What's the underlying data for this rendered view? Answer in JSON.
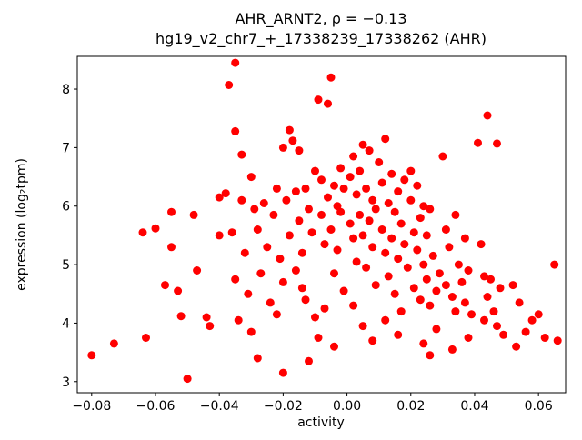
{
  "figure": {
    "title_line1": "AHR_ARNT2, ρ = −0.13",
    "title_line2": "hg19_v2_chr7_+_17338239_17338262 (AHR)",
    "xlabel": "activity",
    "ylabel": "expression (log₂tpm)"
  },
  "chart_data": {
    "type": "scatter",
    "title": "AHR_ARNT2, ρ = −0.13",
    "subtitle": "hg19_v2_chr7_+_17338239_17338262 (AHR)",
    "correlation_rho": -0.13,
    "xlabel": "activity",
    "ylabel": "expression (log₂tpm)",
    "marker_color": "#ff0000",
    "grid": false,
    "legend_position": "none",
    "xlim": [
      -0.0845,
      0.0685
    ],
    "ylim": [
      2.81,
      8.56
    ],
    "x_ticks": {
      "values": [
        -0.08,
        -0.06,
        -0.04,
        -0.02,
        0.0,
        0.02,
        0.04,
        0.06
      ],
      "labels": [
        "−0.08",
        "−0.06",
        "−0.04",
        "−0.02",
        "0.00",
        "0.02",
        "0.04",
        "0.06"
      ]
    },
    "y_ticks": {
      "values": [
        3,
        4,
        5,
        6,
        7,
        8
      ],
      "labels": [
        "3",
        "4",
        "5",
        "6",
        "7",
        "8"
      ]
    },
    "points": [
      [
        -0.08,
        3.45
      ],
      [
        -0.073,
        3.65
      ],
      [
        -0.063,
        3.75
      ],
      [
        -0.064,
        5.55
      ],
      [
        -0.06,
        5.62
      ],
      [
        -0.055,
        5.9
      ],
      [
        -0.057,
        4.65
      ],
      [
        -0.053,
        4.55
      ],
      [
        -0.05,
        3.05
      ],
      [
        -0.052,
        4.12
      ],
      [
        -0.055,
        5.3
      ],
      [
        -0.048,
        5.85
      ],
      [
        -0.047,
        4.9
      ],
      [
        -0.044,
        4.1
      ],
      [
        -0.043,
        3.95
      ],
      [
        -0.04,
        5.5
      ],
      [
        -0.04,
        6.15
      ],
      [
        -0.038,
        6.22
      ],
      [
        -0.036,
        5.55
      ],
      [
        -0.035,
        4.75
      ],
      [
        -0.034,
        4.05
      ],
      [
        -0.033,
        6.1
      ],
      [
        -0.032,
        5.2
      ],
      [
        -0.031,
        4.5
      ],
      [
        -0.03,
        6.5
      ],
      [
        -0.03,
        3.85
      ],
      [
        -0.035,
        7.28
      ],
      [
        -0.035,
        8.45
      ],
      [
        -0.037,
        8.07
      ],
      [
        -0.033,
        6.88
      ],
      [
        -0.029,
        5.95
      ],
      [
        -0.028,
        5.6
      ],
      [
        -0.027,
        4.85
      ],
      [
        -0.026,
        6.05
      ],
      [
        -0.025,
        5.3
      ],
      [
        -0.024,
        4.35
      ],
      [
        -0.023,
        5.85
      ],
      [
        -0.022,
        6.3
      ],
      [
        -0.021,
        5.1
      ],
      [
        -0.02,
        7.0
      ],
      [
        -0.02,
        4.7
      ],
      [
        -0.02,
        3.15
      ],
      [
        -0.028,
        3.4
      ],
      [
        -0.022,
        4.15
      ],
      [
        -0.019,
        6.1
      ],
      [
        -0.018,
        7.3
      ],
      [
        -0.018,
        5.5
      ],
      [
        -0.017,
        7.12
      ],
      [
        -0.016,
        6.25
      ],
      [
        -0.016,
        4.9
      ],
      [
        -0.015,
        6.95
      ],
      [
        -0.015,
        5.75
      ],
      [
        -0.014,
        5.2
      ],
      [
        -0.013,
        6.3
      ],
      [
        -0.013,
        4.4
      ],
      [
        -0.012,
        5.95
      ],
      [
        -0.011,
        5.55
      ],
      [
        -0.01,
        6.6
      ],
      [
        -0.01,
        4.1
      ],
      [
        -0.012,
        3.35
      ],
      [
        -0.014,
        4.6
      ],
      [
        -0.009,
        7.82
      ],
      [
        -0.008,
        6.45
      ],
      [
        -0.008,
        5.85
      ],
      [
        -0.007,
        5.35
      ],
      [
        -0.006,
        7.75
      ],
      [
        -0.006,
        6.15
      ],
      [
        -0.005,
        8.2
      ],
      [
        -0.005,
        5.6
      ],
      [
        -0.004,
        6.35
      ],
      [
        -0.004,
        4.85
      ],
      [
        -0.003,
        6.0
      ],
      [
        -0.003,
        5.25
      ],
      [
        -0.002,
        6.65
      ],
      [
        -0.002,
        5.9
      ],
      [
        -0.001,
        6.3
      ],
      [
        -0.001,
        4.55
      ],
      [
        -0.007,
        4.25
      ],
      [
        -0.009,
        3.75
      ],
      [
        -0.004,
        3.6
      ],
      [
        0.001,
        6.5
      ],
      [
        0.001,
        5.7
      ],
      [
        0.002,
        6.85
      ],
      [
        0.002,
        5.45
      ],
      [
        0.003,
        6.2
      ],
      [
        0.003,
        5.05
      ],
      [
        0.004,
        6.6
      ],
      [
        0.004,
        5.85
      ],
      [
        0.005,
        7.05
      ],
      [
        0.005,
        5.5
      ],
      [
        0.006,
        6.3
      ],
      [
        0.006,
        4.95
      ],
      [
        0.007,
        6.95
      ],
      [
        0.007,
        5.75
      ],
      [
        0.008,
        6.1
      ],
      [
        0.008,
        5.3
      ],
      [
        0.009,
        5.95
      ],
      [
        0.009,
        4.65
      ],
      [
        0.002,
        4.3
      ],
      [
        0.005,
        3.95
      ],
      [
        0.008,
        3.7
      ],
      [
        0.01,
        6.75
      ],
      [
        0.011,
        6.4
      ],
      [
        0.011,
        5.6
      ],
      [
        0.012,
        7.15
      ],
      [
        0.012,
        5.2
      ],
      [
        0.013,
        6.05
      ],
      [
        0.013,
        4.8
      ],
      [
        0.014,
        6.55
      ],
      [
        0.014,
        5.45
      ],
      [
        0.015,
        5.9
      ],
      [
        0.015,
        4.5
      ],
      [
        0.016,
        6.25
      ],
      [
        0.016,
        5.1
      ],
      [
        0.017,
        5.7
      ],
      [
        0.017,
        4.2
      ],
      [
        0.018,
        6.45
      ],
      [
        0.018,
        5.35
      ],
      [
        0.019,
        4.95
      ],
      [
        0.012,
        4.05
      ],
      [
        0.016,
        3.8
      ],
      [
        0.02,
        6.6
      ],
      [
        0.02,
        6.1
      ],
      [
        0.021,
        5.55
      ],
      [
        0.021,
        4.6
      ],
      [
        0.022,
        6.35
      ],
      [
        0.022,
        5.25
      ],
      [
        0.023,
        5.8
      ],
      [
        0.023,
        4.4
      ],
      [
        0.024,
        6.0
      ],
      [
        0.024,
        5.0
      ],
      [
        0.025,
        5.5
      ],
      [
        0.025,
        4.75
      ],
      [
        0.026,
        5.95
      ],
      [
        0.026,
        4.3
      ],
      [
        0.027,
        5.15
      ],
      [
        0.028,
        4.55
      ],
      [
        0.028,
        3.9
      ],
      [
        0.029,
        4.85
      ],
      [
        0.026,
        3.45
      ],
      [
        0.024,
        3.65
      ],
      [
        0.03,
        6.85
      ],
      [
        0.031,
        5.6
      ],
      [
        0.031,
        4.65
      ],
      [
        0.032,
        5.3
      ],
      [
        0.033,
        4.45
      ],
      [
        0.034,
        5.85
      ],
      [
        0.034,
        4.2
      ],
      [
        0.035,
        5.0
      ],
      [
        0.036,
        4.7
      ],
      [
        0.037,
        5.45
      ],
      [
        0.037,
        4.35
      ],
      [
        0.038,
        4.9
      ],
      [
        0.039,
        4.15
      ],
      [
        0.033,
        3.55
      ],
      [
        0.038,
        3.75
      ],
      [
        0.041,
        7.08
      ],
      [
        0.044,
        7.55
      ],
      [
        0.047,
        7.07
      ],
      [
        0.042,
        5.35
      ],
      [
        0.043,
        4.8
      ],
      [
        0.044,
        4.45
      ],
      [
        0.045,
        4.75
      ],
      [
        0.046,
        4.2
      ],
      [
        0.047,
        3.95
      ],
      [
        0.048,
        4.6
      ],
      [
        0.043,
        4.05
      ],
      [
        0.049,
        3.8
      ],
      [
        0.052,
        4.65
      ],
      [
        0.054,
        4.35
      ],
      [
        0.056,
        3.85
      ],
      [
        0.058,
        4.05
      ],
      [
        0.06,
        4.15
      ],
      [
        0.062,
        3.75
      ],
      [
        0.065,
        5.0
      ],
      [
        0.066,
        3.7
      ],
      [
        0.053,
        3.6
      ]
    ]
  }
}
